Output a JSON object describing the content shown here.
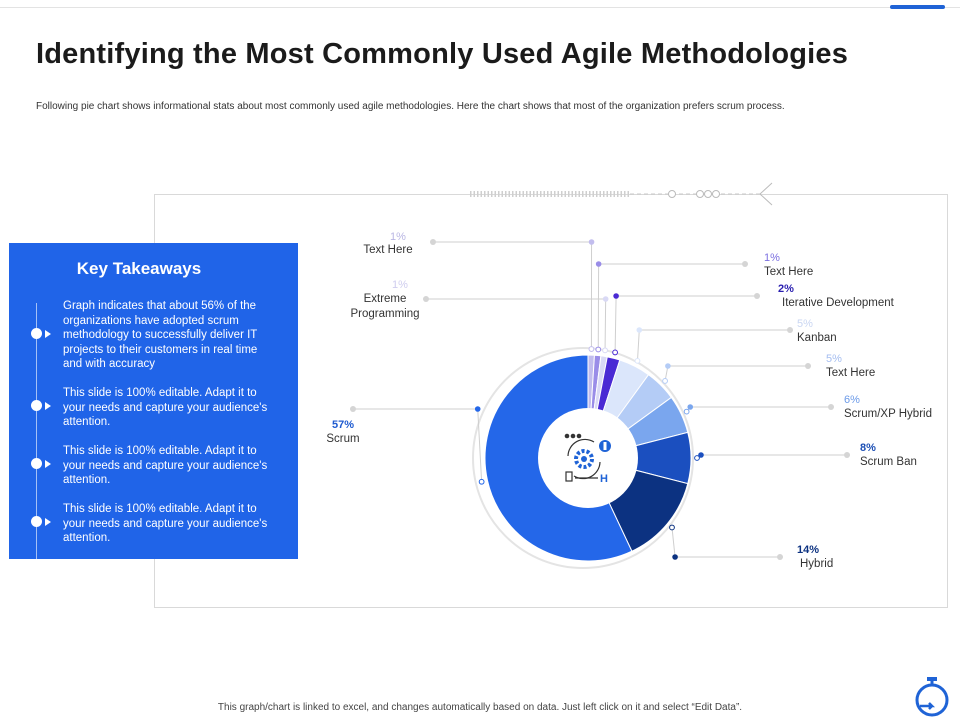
{
  "header": {
    "title": "Identifying the Most Commonly Used Agile Methodologies",
    "subtitle": "Following pie chart shows informational stats about most commonly used agile methodologies.  Here the chart shows that most of the organization prefers scrum process."
  },
  "takeaways": {
    "title": "Key Takeaways",
    "items": [
      "Graph indicates that about 56% of the organizations have adopted scrum methodology to successfully deliver IT projects to their customers in real time and with accuracy",
      "This slide is 100% editable. Adapt it to your needs and capture your audience's attention.",
      "This slide is 100% editable. Adapt it to your needs and capture your audience's attention.",
      "This slide is 100% editable. Adapt it to your needs and capture your audience's attention."
    ]
  },
  "footer": "This graph/chart is linked to excel, and changes automatically based on data. Just left click on it and select “Edit Data”.",
  "icons": {
    "center": "agile-process-icon",
    "corner": "stopwatch-icon"
  },
  "colors": {
    "accent": "#2064e8"
  },
  "chart_data": {
    "type": "pie",
    "slices": [
      {
        "label": "Text Here",
        "pct_label": "1%",
        "value": 1,
        "color": "#c2bdee"
      },
      {
        "label": "Text Here",
        "pct_label": "1%",
        "value": 1,
        "color": "#9a8de8"
      },
      {
        "label": "Extreme Programming",
        "pct_label": "1%",
        "value": 1,
        "color": "#d9d9f5"
      },
      {
        "label": "Iterative Development",
        "pct_label": "2%",
        "value": 2,
        "color": "#4a2ad4"
      },
      {
        "label": "Kanban",
        "pct_label": "5%",
        "value": 5,
        "color": "#dbe6fb"
      },
      {
        "label": "Text Here",
        "pct_label": "5%",
        "value": 5,
        "color": "#b4ccf6"
      },
      {
        "label": "Scrum/XP Hybrid",
        "pct_label": "6%",
        "value": 6,
        "color": "#7aa6ee"
      },
      {
        "label": "Scrum Ban",
        "pct_label": "8%",
        "value": 8,
        "color": "#1b4fbf"
      },
      {
        "label": "Hybrid",
        "pct_label": "14%",
        "value": 14,
        "color": "#0c3281"
      },
      {
        "label": "Scrum",
        "pct_label": "57%",
        "value": 57,
        "color": "#2467e9"
      }
    ]
  }
}
